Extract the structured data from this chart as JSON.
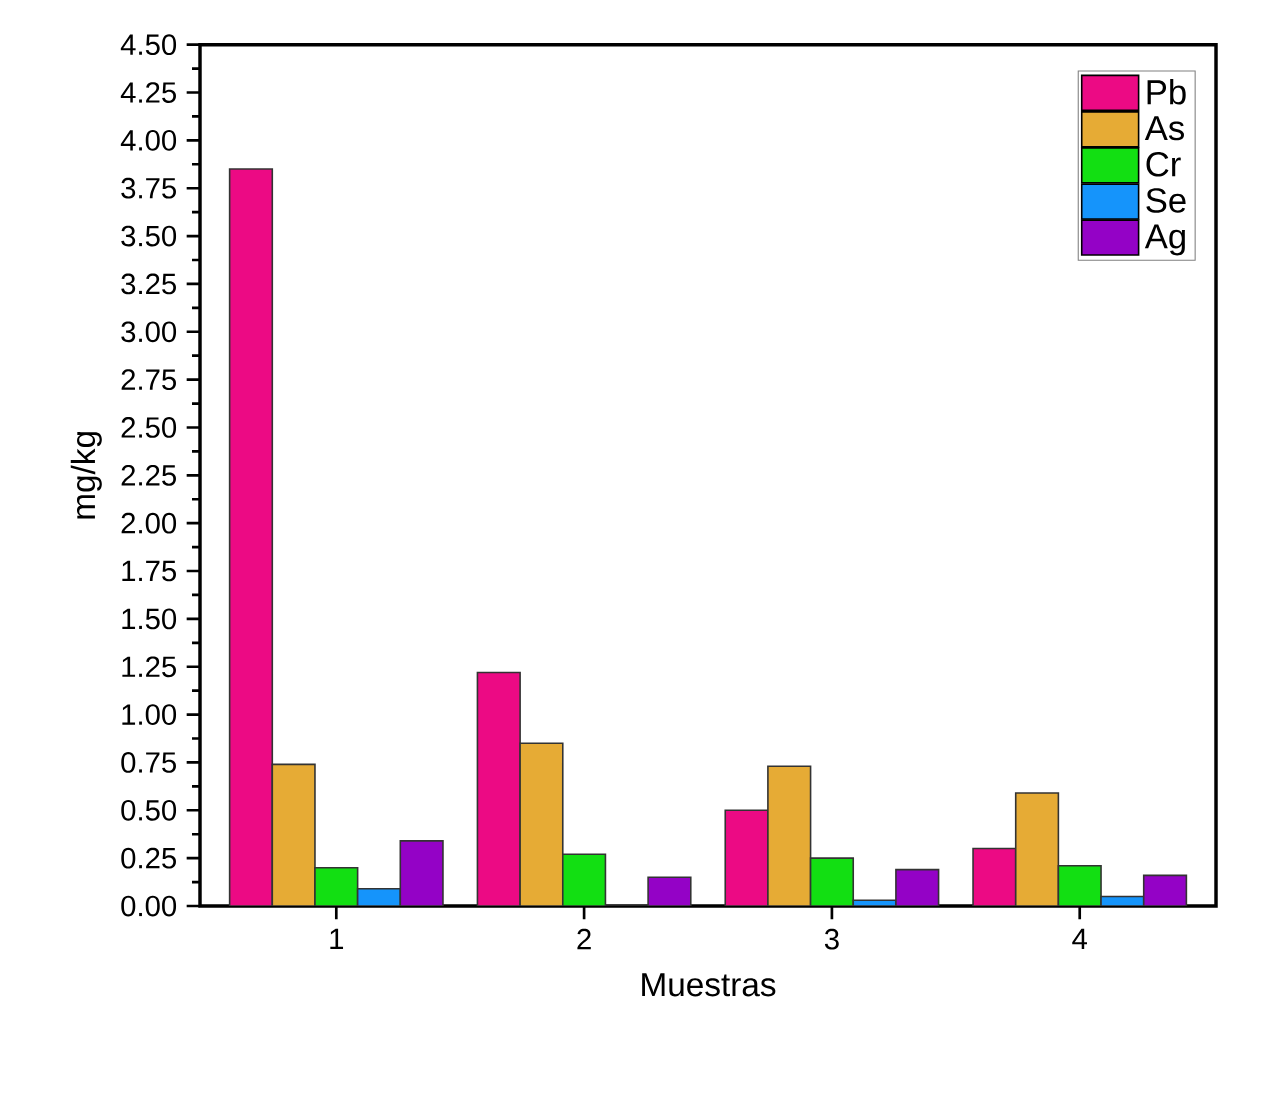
{
  "chart_data": {
    "type": "bar",
    "xlabel": "Muestras",
    "ylabel": "mg/kg",
    "categories": [
      "1",
      "2",
      "3",
      "4"
    ],
    "series": [
      {
        "name": "Pb",
        "color": "#ec0a84",
        "values": [
          3.85,
          1.22,
          0.5,
          0.3
        ]
      },
      {
        "name": "As",
        "color": "#e6ab35",
        "values": [
          0.74,
          0.85,
          0.73,
          0.59
        ]
      },
      {
        "name": "Cr",
        "color": "#12df12",
        "values": [
          0.2,
          0.27,
          0.25,
          0.21
        ]
      },
      {
        "name": "Se",
        "color": "#1594fb",
        "values": [
          0.09,
          0.0,
          0.03,
          0.05
        ]
      },
      {
        "name": "Ag",
        "color": "#9402c6",
        "values": [
          0.34,
          0.15,
          0.19,
          0.16
        ]
      }
    ],
    "ylim": [
      0,
      4.5
    ],
    "yticks": [
      {
        "value": 0,
        "label": "0.00"
      },
      0.25,
      {
        "value": 0.5,
        "label": "0.50"
      },
      0.75,
      {
        "value": 1,
        "label": "1.00"
      },
      1.25,
      {
        "value": 1.5,
        "label": "1.50"
      },
      1.75,
      {
        "value": 2,
        "label": "2.00"
      },
      2.25,
      {
        "value": 2.5,
        "label": "2.50"
      },
      2.75,
      {
        "value": 3,
        "label": "3.00"
      },
      3.25,
      {
        "value": 3.5,
        "label": "3.50"
      },
      3.75,
      {
        "value": 4,
        "label": "4.00"
      },
      4.25,
      {
        "value": 4.5,
        "label": "4.50"
      }
    ],
    "grid": false,
    "legend": "top right"
  }
}
